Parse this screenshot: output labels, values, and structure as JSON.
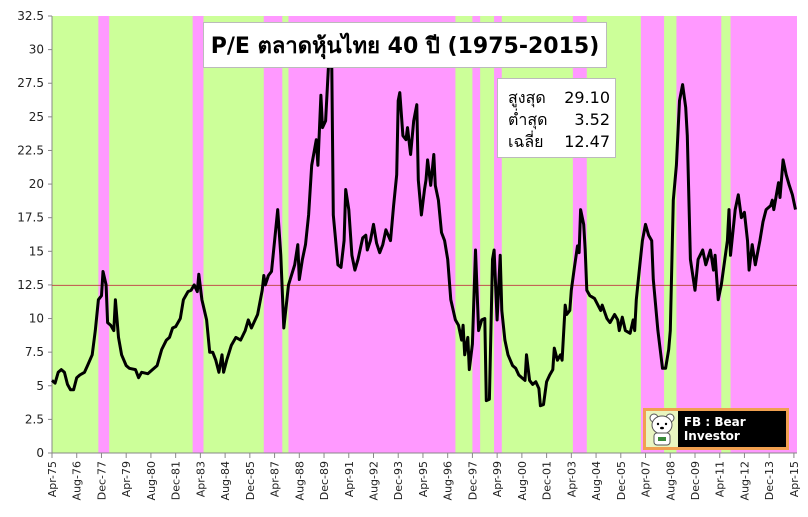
{
  "chart_data": {
    "type": "line",
    "title": "P/E ตลาดหุ้นไทย 40 ปี (1975-2015)",
    "ylim": [
      0,
      32.5
    ],
    "yticks": [
      "0",
      "2.5",
      "5",
      "7.5",
      "10",
      "12.5",
      "15",
      "17.5",
      "20",
      "22.5",
      "25",
      "27.5",
      "30",
      "32.5"
    ],
    "xticks": [
      "Apr-75",
      "Aug-76",
      "Dec-77",
      "Apr-79",
      "Aug-80",
      "Dec-81",
      "Apr-83",
      "Aug-84",
      "Dec-85",
      "Apr-87",
      "Aug-88",
      "Dec-89",
      "Apr-91",
      "Aug-92",
      "Dec-93",
      "Apr-95",
      "Aug-96",
      "Dec-97",
      "Apr-99",
      "Aug-00",
      "Dec-01",
      "Apr-03",
      "Aug-04",
      "Dec-05",
      "Apr-07",
      "Aug-08",
      "Dec-09",
      "Apr-11",
      "Aug-12",
      "Dec-13",
      "Apr-15"
    ],
    "xrange": [
      "1975-04",
      "2015-06"
    ],
    "average": 12.47,
    "colors": {
      "line": "#000000",
      "average": "#c0504d",
      "band_a": "#ccff99",
      "band_b": "#ff99ff"
    },
    "band_b_periods": [
      [
        "1977-10",
        "1978-05"
      ],
      [
        "1982-11",
        "1983-06"
      ],
      [
        "1986-09",
        "1987-09"
      ],
      [
        "1988-01",
        "1997-01"
      ],
      [
        "1997-12",
        "1998-05"
      ],
      [
        "1999-02",
        "1999-07"
      ],
      [
        "2003-05",
        "2004-02"
      ],
      [
        "2007-01",
        "2008-04"
      ],
      [
        "2008-12",
        "2011-05"
      ],
      [
        "2011-11",
        "2015-06"
      ]
    ],
    "series": [
      {
        "values": [
          [
            "1975-04",
            5.4
          ],
          [
            "1975-06",
            5.2
          ],
          [
            "1975-08",
            6.0
          ],
          [
            "1975-10",
            6.2
          ],
          [
            "1975-12",
            6.0
          ],
          [
            "1976-02",
            5.1
          ],
          [
            "1976-04",
            4.7
          ],
          [
            "1976-06",
            4.7
          ],
          [
            "1976-08",
            5.6
          ],
          [
            "1976-10",
            5.8
          ],
          [
            "1977-01",
            6.0
          ],
          [
            "1977-03",
            6.5
          ],
          [
            "1977-06",
            7.3
          ],
          [
            "1977-08",
            9.1
          ],
          [
            "1977-10",
            11.4
          ],
          [
            "1977-12",
            11.7
          ],
          [
            "1978-01",
            13.5
          ],
          [
            "1978-03",
            12.5
          ],
          [
            "1978-04",
            9.7
          ],
          [
            "1978-06",
            9.5
          ],
          [
            "1978-08",
            9.1
          ],
          [
            "1978-09",
            11.4
          ],
          [
            "1978-11",
            8.6
          ],
          [
            "1979-01",
            7.3
          ],
          [
            "1979-04",
            6.5
          ],
          [
            "1979-06",
            6.3
          ],
          [
            "1979-10",
            6.2
          ],
          [
            "1979-12",
            5.6
          ],
          [
            "1980-02",
            6.0
          ],
          [
            "1980-06",
            5.9
          ],
          [
            "1980-09",
            6.2
          ],
          [
            "1980-12",
            6.5
          ],
          [
            "1981-03",
            7.7
          ],
          [
            "1981-06",
            8.4
          ],
          [
            "1981-08",
            8.6
          ],
          [
            "1981-10",
            9.3
          ],
          [
            "1981-12",
            9.4
          ],
          [
            "1982-03",
            10.0
          ],
          [
            "1982-05",
            11.4
          ],
          [
            "1982-08",
            12.0
          ],
          [
            "1982-10",
            12.1
          ],
          [
            "1982-12",
            12.5
          ],
          [
            "1983-02",
            12.0
          ],
          [
            "1983-03",
            13.3
          ],
          [
            "1983-05",
            11.4
          ],
          [
            "1983-08",
            9.9
          ],
          [
            "1983-10",
            7.5
          ],
          [
            "1983-12",
            7.5
          ],
          [
            "1984-02",
            6.9
          ],
          [
            "1984-04",
            6.0
          ],
          [
            "1984-06",
            7.3
          ],
          [
            "1984-07",
            6.0
          ],
          [
            "1984-09",
            6.9
          ],
          [
            "1984-12",
            8.0
          ],
          [
            "1985-03",
            8.6
          ],
          [
            "1985-06",
            8.4
          ],
          [
            "1985-09",
            9.1
          ],
          [
            "1985-11",
            9.9
          ],
          [
            "1986-01",
            9.3
          ],
          [
            "1986-05",
            10.3
          ],
          [
            "1986-08",
            12.1
          ],
          [
            "1986-09",
            13.2
          ],
          [
            "1986-10",
            12.5
          ],
          [
            "1986-12",
            13.2
          ],
          [
            "1987-02",
            13.5
          ],
          [
            "1987-04",
            15.8
          ],
          [
            "1987-06",
            18.1
          ],
          [
            "1987-08",
            14.7
          ],
          [
            "1987-10",
            9.3
          ],
          [
            "1987-12",
            11.4
          ],
          [
            "1988-01",
            12.5
          ],
          [
            "1988-05",
            14.0
          ],
          [
            "1988-07",
            15.5
          ],
          [
            "1988-08",
            12.9
          ],
          [
            "1988-10",
            14.4
          ],
          [
            "1988-12",
            15.5
          ],
          [
            "1989-02",
            17.7
          ],
          [
            "1989-04",
            21.4
          ],
          [
            "1989-07",
            23.3
          ],
          [
            "1989-08",
            21.4
          ],
          [
            "1989-10",
            26.6
          ],
          [
            "1989-11",
            24.2
          ],
          [
            "1990-01",
            24.7
          ],
          [
            "1990-03",
            29.1
          ],
          [
            "1990-05",
            28.6
          ],
          [
            "1990-06",
            17.7
          ],
          [
            "1990-09",
            14.0
          ],
          [
            "1990-11",
            13.8
          ],
          [
            "1991-01",
            15.8
          ],
          [
            "1991-02",
            19.6
          ],
          [
            "1991-04",
            18.1
          ],
          [
            "1991-06",
            14.7
          ],
          [
            "1991-08",
            13.6
          ],
          [
            "1991-10",
            14.4
          ],
          [
            "1992-01",
            16.0
          ],
          [
            "1992-03",
            16.2
          ],
          [
            "1992-04",
            15.1
          ],
          [
            "1992-06",
            15.8
          ],
          [
            "1992-08",
            17.0
          ],
          [
            "1992-10",
            15.6
          ],
          [
            "1992-12",
            14.9
          ],
          [
            "1993-02",
            15.5
          ],
          [
            "1993-04",
            16.6
          ],
          [
            "1993-07",
            15.8
          ],
          [
            "1993-09",
            18.4
          ],
          [
            "1993-11",
            20.7
          ],
          [
            "1993-12",
            26.2
          ],
          [
            "1994-01",
            26.8
          ],
          [
            "1994-03",
            23.6
          ],
          [
            "1994-05",
            23.3
          ],
          [
            "1994-06",
            24.2
          ],
          [
            "1994-08",
            22.2
          ],
          [
            "1994-10",
            24.7
          ],
          [
            "1994-12",
            25.9
          ],
          [
            "1995-01",
            20.3
          ],
          [
            "1995-03",
            17.7
          ],
          [
            "1995-05",
            19.6
          ],
          [
            "1995-06",
            20.3
          ],
          [
            "1995-07",
            21.8
          ],
          [
            "1995-09",
            19.9
          ],
          [
            "1995-11",
            22.2
          ],
          [
            "1995-12",
            19.9
          ],
          [
            "1996-02",
            18.8
          ],
          [
            "1996-04",
            16.4
          ],
          [
            "1996-06",
            15.8
          ],
          [
            "1996-08",
            14.4
          ],
          [
            "1996-10",
            11.4
          ],
          [
            "1997-01",
            9.9
          ],
          [
            "1997-03",
            9.5
          ],
          [
            "1997-05",
            8.4
          ],
          [
            "1997-06",
            9.5
          ],
          [
            "1997-07",
            7.3
          ],
          [
            "1997-09",
            8.6
          ],
          [
            "1997-10",
            6.2
          ],
          [
            "1997-12",
            8.1
          ],
          [
            "1998-02",
            15.1
          ],
          [
            "1998-04",
            9.1
          ],
          [
            "1998-06",
            9.9
          ],
          [
            "1998-08",
            10.0
          ],
          [
            "1998-09",
            3.9
          ],
          [
            "1998-11",
            4.0
          ],
          [
            "1999-01",
            14.4
          ],
          [
            "1999-02",
            15.1
          ],
          [
            "1999-04",
            9.9
          ],
          [
            "1999-06",
            14.7
          ],
          [
            "1999-07",
            10.6
          ],
          [
            "1999-09",
            8.4
          ],
          [
            "1999-11",
            7.3
          ],
          [
            "2000-02",
            6.5
          ],
          [
            "2000-04",
            6.3
          ],
          [
            "2000-06",
            5.8
          ],
          [
            "2000-08",
            5.6
          ],
          [
            "2000-10",
            5.4
          ],
          [
            "2000-11",
            7.3
          ],
          [
            "2001-01",
            5.4
          ],
          [
            "2001-03",
            5.1
          ],
          [
            "2001-05",
            5.3
          ],
          [
            "2001-07",
            4.8
          ],
          [
            "2001-08",
            3.52
          ],
          [
            "2001-10",
            3.6
          ],
          [
            "2001-12",
            5.3
          ],
          [
            "2002-02",
            5.8
          ],
          [
            "2002-04",
            6.2
          ],
          [
            "2002-05",
            7.8
          ],
          [
            "2002-07",
            6.9
          ],
          [
            "2002-09",
            7.3
          ],
          [
            "2002-10",
            6.9
          ],
          [
            "2002-12",
            11.0
          ],
          [
            "2003-01",
            10.3
          ],
          [
            "2003-03",
            10.6
          ],
          [
            "2003-04",
            12.1
          ],
          [
            "2003-06",
            13.8
          ],
          [
            "2003-08",
            15.4
          ],
          [
            "2003-09",
            14.9
          ],
          [
            "2003-10",
            18.1
          ],
          [
            "2003-12",
            17.0
          ],
          [
            "2004-01",
            15.1
          ],
          [
            "2004-02",
            12.1
          ],
          [
            "2004-04",
            11.7
          ],
          [
            "2004-07",
            11.5
          ],
          [
            "2004-11",
            10.6
          ],
          [
            "2004-12",
            11.0
          ],
          [
            "2005-03",
            10.0
          ],
          [
            "2005-05",
            9.7
          ],
          [
            "2005-08",
            10.3
          ],
          [
            "2005-10",
            9.9
          ],
          [
            "2005-11",
            9.1
          ],
          [
            "2006-01",
            10.1
          ],
          [
            "2006-03",
            9.1
          ],
          [
            "2006-06",
            8.9
          ],
          [
            "2006-08",
            9.9
          ],
          [
            "2006-09",
            9.1
          ],
          [
            "2006-10",
            11.4
          ],
          [
            "2006-12",
            13.6
          ],
          [
            "2007-02",
            15.8
          ],
          [
            "2007-04",
            17.0
          ],
          [
            "2007-06",
            16.2
          ],
          [
            "2007-08",
            15.8
          ],
          [
            "2007-09",
            12.9
          ],
          [
            "2007-12",
            9.1
          ],
          [
            "2008-03",
            6.3
          ],
          [
            "2008-05",
            6.3
          ],
          [
            "2008-07",
            7.7
          ],
          [
            "2008-08",
            9.1
          ],
          [
            "2008-10",
            18.8
          ],
          [
            "2008-12",
            21.4
          ],
          [
            "2009-02",
            26.2
          ],
          [
            "2009-04",
            27.4
          ],
          [
            "2009-06",
            25.7
          ],
          [
            "2009-07",
            23.6
          ],
          [
            "2009-09",
            14.4
          ],
          [
            "2009-12",
            12.1
          ],
          [
            "2010-02",
            14.4
          ],
          [
            "2010-05",
            15.1
          ],
          [
            "2010-07",
            14.0
          ],
          [
            "2010-10",
            15.1
          ],
          [
            "2010-12",
            13.6
          ],
          [
            "2011-01",
            14.7
          ],
          [
            "2011-03",
            11.4
          ],
          [
            "2011-05",
            12.5
          ],
          [
            "2011-09",
            15.8
          ],
          [
            "2011-10",
            18.1
          ],
          [
            "2011-11",
            14.7
          ],
          [
            "2012-02",
            18.1
          ],
          [
            "2012-04",
            19.2
          ],
          [
            "2012-06",
            17.5
          ],
          [
            "2012-08",
            17.9
          ],
          [
            "2012-10",
            15.8
          ],
          [
            "2012-11",
            13.6
          ],
          [
            "2013-01",
            15.5
          ],
          [
            "2013-03",
            14.0
          ],
          [
            "2013-06",
            15.8
          ],
          [
            "2013-08",
            17.2
          ],
          [
            "2013-10",
            18.1
          ],
          [
            "2014-01",
            18.4
          ],
          [
            "2014-02",
            18.8
          ],
          [
            "2014-03",
            18.1
          ],
          [
            "2014-06",
            20.1
          ],
          [
            "2014-07",
            19.0
          ],
          [
            "2014-09",
            21.8
          ],
          [
            "2014-11",
            20.7
          ],
          [
            "2015-01",
            19.9
          ],
          [
            "2015-03",
            19.2
          ],
          [
            "2015-05",
            18.1
          ]
        ]
      }
    ]
  },
  "stats": [
    {
      "label": "สูงสุด",
      "value": "29.10"
    },
    {
      "label": "ต่ำสุด",
      "value": "3.52"
    },
    {
      "label": "เฉลี่ย",
      "value": "12.47"
    }
  ],
  "logo": {
    "text": "FB : Bear Investor",
    "icon": "bear-mascot-icon"
  }
}
